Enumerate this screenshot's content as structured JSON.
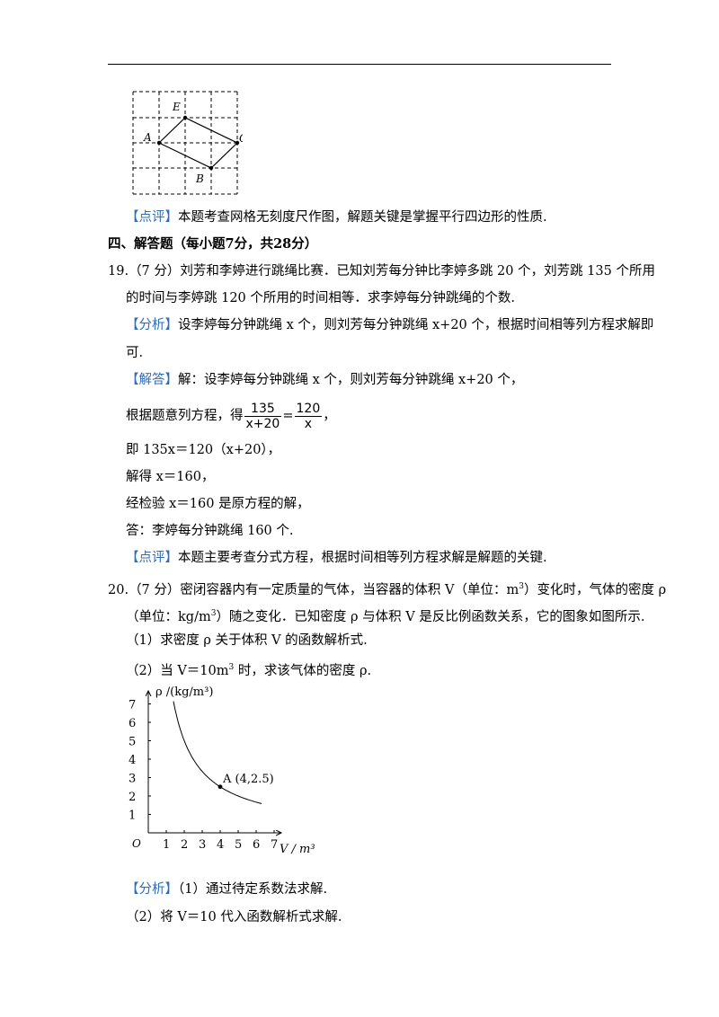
{
  "grid_figure": {
    "labels": {
      "a": "A",
      "b": "B",
      "c": "C",
      "e": "E"
    }
  },
  "review_tag": "【点评】",
  "analysis_tag": "【分析】",
  "answer_tag": "【解答】",
  "p18_review": "本题考查网格无刻度尺作图，解题关键是掌握平行四边形的性质.",
  "section_title": "四、解答题（每小题7分，共28分）",
  "q19": {
    "number": "19.",
    "stem_l1": "（7 分）刘芳和李婷进行跳绳比赛．已知刘芳每分钟比李婷多跳 20 个，刘芳跳 135 个所用",
    "stem_l2": "的时间与李婷跳 120 个所用的时间相等．求李婷每分钟跳绳的个数.",
    "analysis_l1": "设李婷每分钟跳绳 x 个，则刘芳每分钟跳绳 x+20 个，根据时间相等列方程求解即",
    "analysis_l2": "可.",
    "answer_l1": "解：设李婷每分钟跳绳 x 个，则刘芳每分钟跳绳 x+20 个，",
    "answer_l2_prefix": "根据题意列方程，得",
    "frac_left_num": "135",
    "frac_left_den": "x+20",
    "frac_eq": "=",
    "frac_right_num": "120",
    "frac_right_den": "x",
    "answer_l2_suffix": "，",
    "answer_l3": "即 135x＝120（x+20），",
    "answer_l4": "解得 x＝160，",
    "answer_l5": "经检验 x＝160 是原方程的解，",
    "answer_l6": "答：李婷每分钟跳绳 160 个.",
    "review": "本题主要考查分式方程，根据时间相等列方程求解是解题的关键."
  },
  "q20": {
    "number": "20.",
    "stem_l1_a": "（7 分）密闭容器内有一定质量的气体，当容器的体积 V（单位：m",
    "stem_l1_sup": "3",
    "stem_l1_b": "）变化时，气体的密度 ρ",
    "stem_l2_a": "（单位：kg/m",
    "stem_l2_sup": "3",
    "stem_l2_b": "）随之变化．已知密度 ρ 与体积 V 是反比例函数关系，它的图象如图所示.",
    "part1": "（1）求密度 ρ 关于体积 V 的函数解析式.",
    "part2_a": "（2）当 V＝10m",
    "part2_sup": "3",
    "part2_b": " 时，求该气体的密度 ρ.",
    "analysis_l1": "（1）通过待定系数法求解.",
    "analysis_l2": "（2）将 V＝10 代入函数解析式求解."
  },
  "chart_data": {
    "type": "line",
    "ylabel": "ρ /(kg/m³)",
    "xlabel": "V / m³",
    "origin_label": "O",
    "x_ticks": [
      "1",
      "2",
      "3",
      "4",
      "5",
      "6",
      "7"
    ],
    "y_ticks": [
      "1",
      "2",
      "3",
      "4",
      "5",
      "6",
      "7"
    ],
    "xlim": [
      0,
      7.5
    ],
    "ylim": [
      0,
      7.5
    ],
    "function": "rho = 10 / V",
    "x_range": [
      1.4,
      6.3
    ],
    "point": {
      "label": "A (4,2.5)",
      "x": 4,
      "y": 2.5
    }
  }
}
